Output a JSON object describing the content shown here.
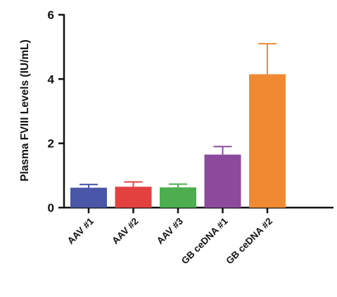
{
  "chart_data": {
    "type": "bar",
    "ylabel": "Plasma FVIII Levels (IU/mL)",
    "xlabel": "",
    "title": "",
    "ylim": [
      0,
      6
    ],
    "yticks": [
      0,
      2,
      4,
      6
    ],
    "yticklabels": [
      "0",
      "2",
      "4",
      "6"
    ],
    "categories": [
      "AAV #1",
      "AAV #2",
      "AAV #3",
      "GB ceDNA #1",
      "GB ceDNA #2"
    ],
    "values": [
      0.62,
      0.65,
      0.63,
      1.65,
      4.15
    ],
    "error_upper": [
      0.1,
      0.15,
      0.1,
      0.25,
      0.95
    ],
    "colors": [
      "#4a57a8",
      "#e3413f",
      "#4cae4f",
      "#8d4a9c",
      "#ef8a33"
    ],
    "grid": false,
    "legend": "none"
  }
}
